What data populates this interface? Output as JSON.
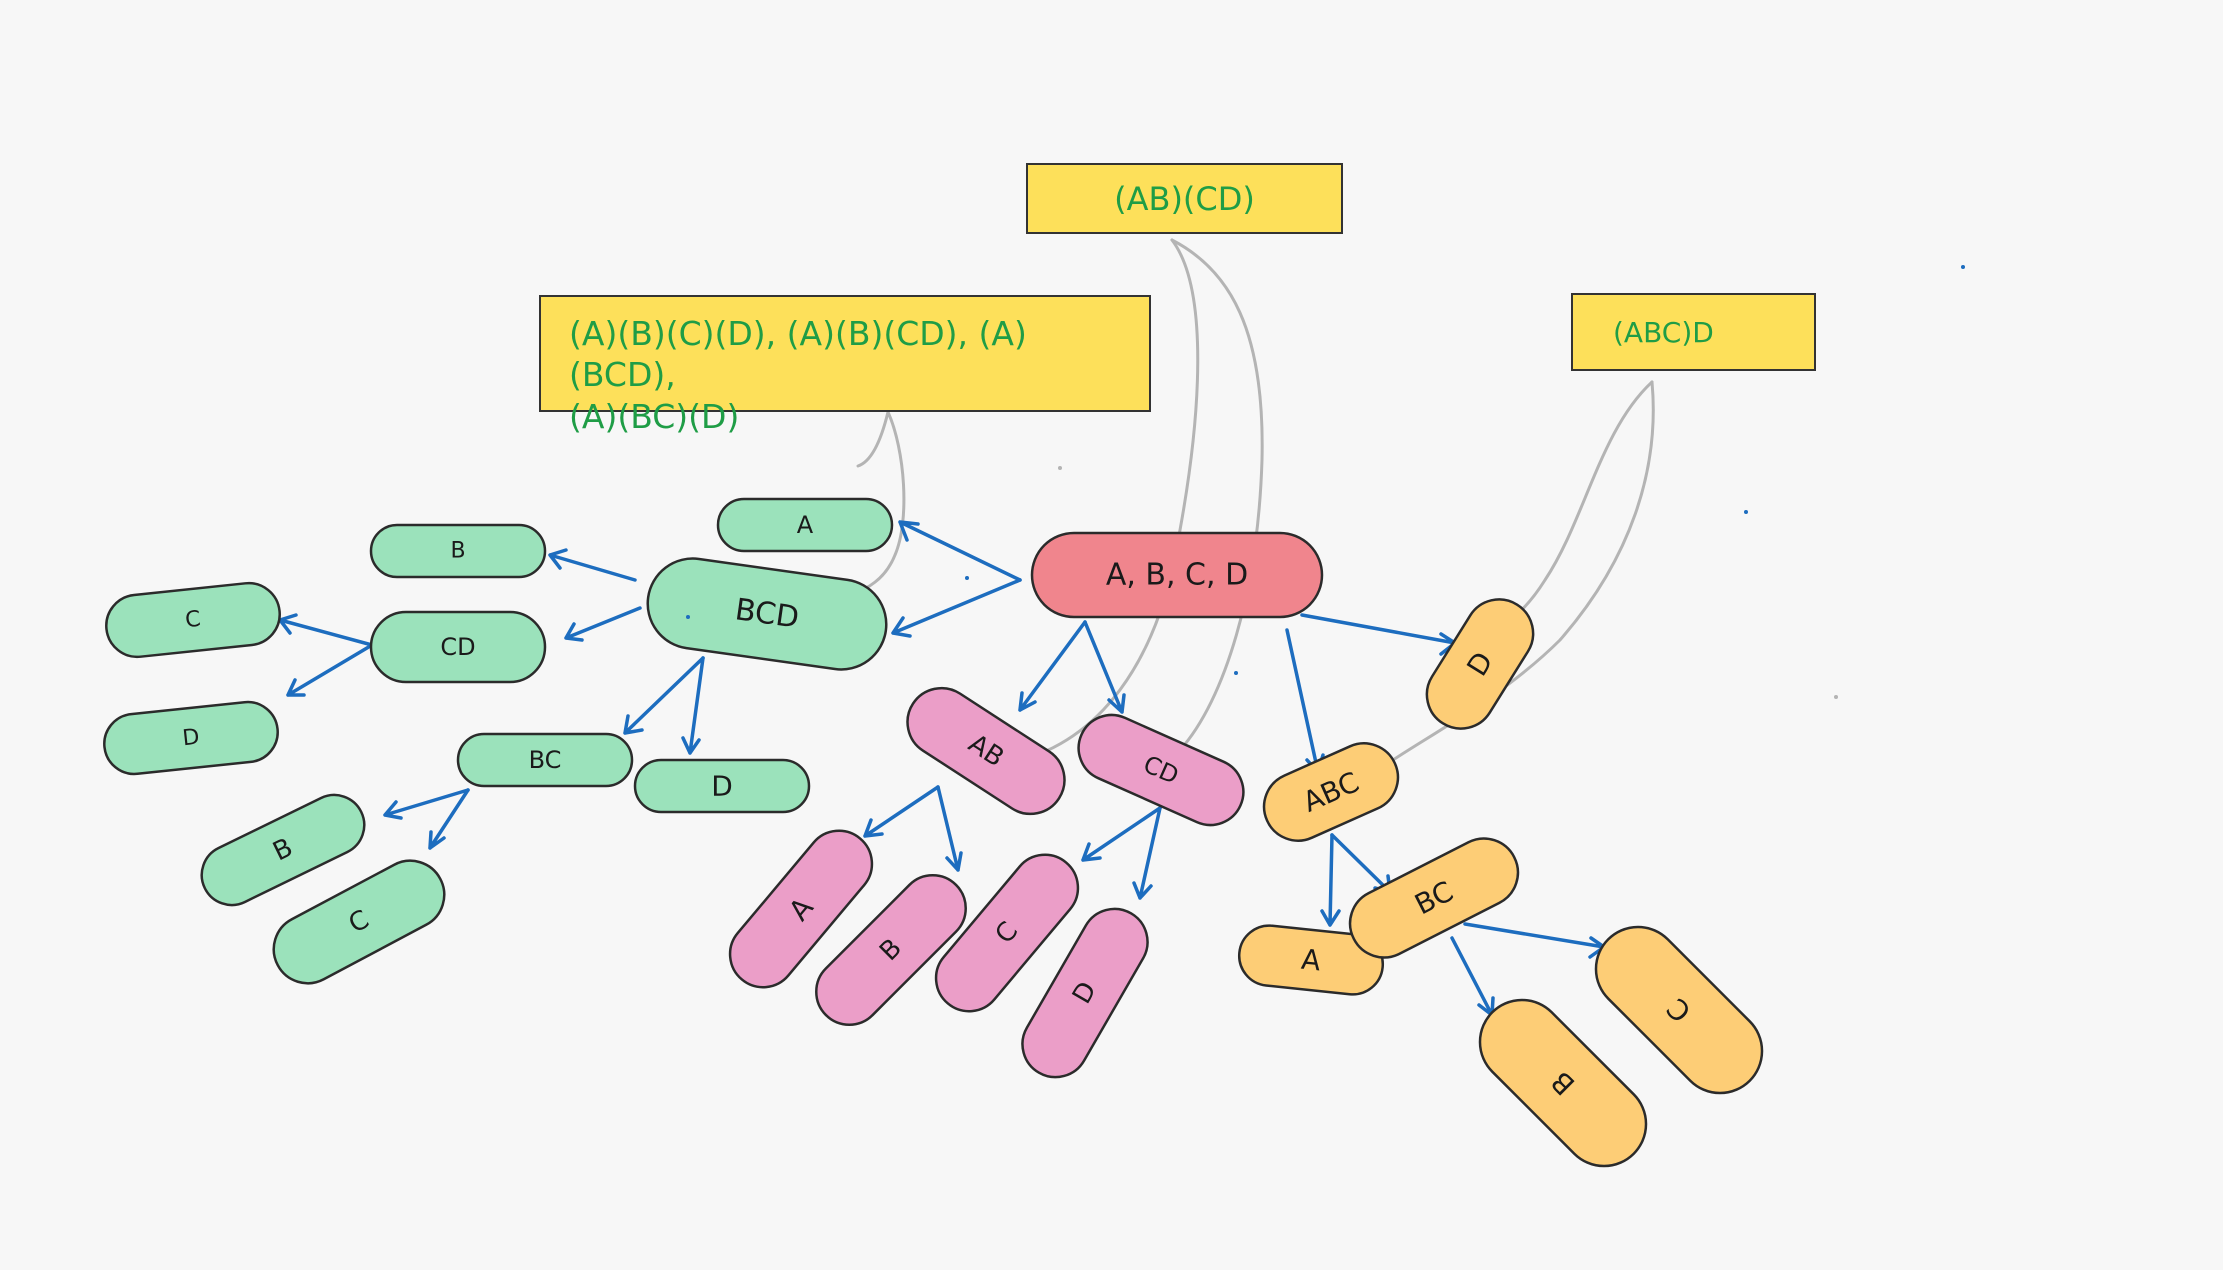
{
  "colors": {
    "background": "#f7f7f7",
    "note_fill": "#fde05a",
    "note_text": "#1f9d46",
    "root": "#f0858d",
    "green": "#9be2bb",
    "pink": "#eb9ec8",
    "orange": "#fdcd76",
    "arrow": "#1d6dbf",
    "connector": "#b4b4b4"
  },
  "notes": {
    "left_line1": "(A)(B)(C)(D), (A)(B)(CD), (A)(BCD),",
    "left_line2": "(A)(BC)(D)",
    "middle": "(AB)(CD)",
    "right": "(ABC)D"
  },
  "nodes": {
    "root": "A, B, C, D",
    "green_a": "A",
    "green_bcd": "BCD",
    "green_b": "B",
    "green_cd": "CD",
    "green_c": "C",
    "green_d": "D",
    "green_bc": "BC",
    "green_d2": "D",
    "green_b2": "B",
    "green_c2": "C",
    "pink_ab": "AB",
    "pink_cd": "CD",
    "pink_a": "A",
    "pink_b": "B",
    "pink_c": "C",
    "pink_d": "D",
    "orange_d": "D",
    "orange_abc": "ABC",
    "orange_a": "A",
    "orange_bc": "BC",
    "orange_b": "B",
    "orange_c": "C"
  }
}
